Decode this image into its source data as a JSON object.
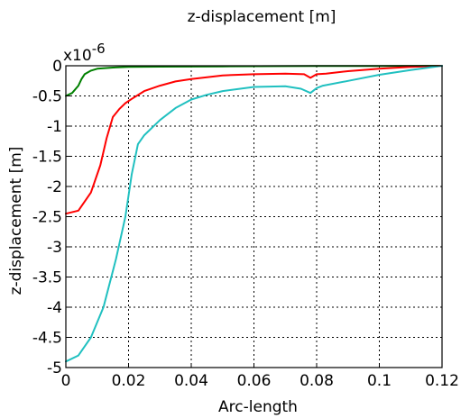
{
  "chart_data": {
    "type": "line",
    "title": "z-displacement [m]",
    "xlabel": "Arc-length",
    "ylabel": "z-displacement [m]",
    "y_multiplier": "x10",
    "y_multiplier_exponent": "-6",
    "xlim": [
      0,
      0.12
    ],
    "ylim": [
      -5,
      0
    ],
    "grid": true,
    "x_ticks": [
      0,
      0.02,
      0.04,
      0.06,
      0.08,
      0.1,
      0.12
    ],
    "x_tick_labels": [
      "0",
      "0.02",
      "0.04",
      "0.06",
      "0.08",
      "0.1",
      "0.12"
    ],
    "y_ticks": [
      0,
      -0.5,
      -1,
      -1.5,
      -2,
      -2.5,
      -3,
      -3.5,
      -4,
      -4.5,
      -5
    ],
    "y_tick_labels": [
      "0",
      "-0.5",
      "-1",
      "-1.5",
      "-2",
      "-2.5",
      "-3",
      "-3.5",
      "-4",
      "-4.5",
      "-5"
    ],
    "series": [
      {
        "color": "#008000",
        "x": [
          0,
          0.002,
          0.004,
          0.005,
          0.006,
          0.008,
          0.01,
          0.015,
          0.02,
          0.03,
          0.05,
          0.08,
          0.1,
          0.12
        ],
        "y": [
          -0.5,
          -0.45,
          -0.33,
          -0.22,
          -0.14,
          -0.08,
          -0.05,
          -0.03,
          -0.02,
          -0.015,
          -0.01,
          -0.005,
          -0.003,
          0
        ]
      },
      {
        "color": "#ff0000",
        "x": [
          0,
          0.004,
          0.008,
          0.011,
          0.013,
          0.015,
          0.017,
          0.019,
          0.021,
          0.025,
          0.03,
          0.035,
          0.04,
          0.05,
          0.06,
          0.07,
          0.076,
          0.078,
          0.08,
          0.083,
          0.09,
          0.1,
          0.11,
          0.12
        ],
        "y": [
          -2.45,
          -2.4,
          -2.1,
          -1.65,
          -1.2,
          -0.85,
          -0.72,
          -0.62,
          -0.55,
          -0.42,
          -0.33,
          -0.26,
          -0.22,
          -0.16,
          -0.14,
          -0.13,
          -0.14,
          -0.2,
          -0.14,
          -0.13,
          -0.09,
          -0.05,
          -0.02,
          0
        ]
      },
      {
        "color": "#20c0c0",
        "x": [
          0,
          0.004,
          0.008,
          0.012,
          0.016,
          0.019,
          0.021,
          0.023,
          0.025,
          0.03,
          0.035,
          0.04,
          0.045,
          0.05,
          0.06,
          0.07,
          0.075,
          0.078,
          0.08,
          0.082,
          0.09,
          0.1,
          0.11,
          0.12
        ],
        "y": [
          -4.9,
          -4.8,
          -4.5,
          -4.0,
          -3.2,
          -2.5,
          -1.8,
          -1.3,
          -1.15,
          -0.9,
          -0.7,
          -0.56,
          -0.48,
          -0.42,
          -0.35,
          -0.34,
          -0.38,
          -0.45,
          -0.37,
          -0.33,
          -0.25,
          -0.15,
          -0.07,
          0
        ]
      }
    ]
  }
}
